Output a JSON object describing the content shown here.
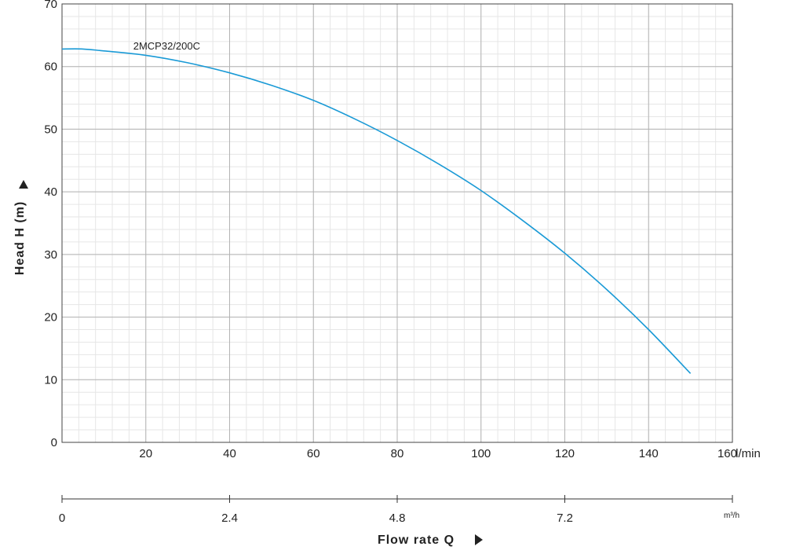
{
  "chart_data": {
    "type": "line",
    "title": "",
    "xlabel": "Flow rate Q",
    "ylabel": "Head H (m)",
    "x_unit": "l/min",
    "x2_unit": "m³/h",
    "xlim": [
      0,
      160
    ],
    "ylim": [
      0,
      70
    ],
    "x_ticks": [
      20,
      40,
      60,
      80,
      100,
      120,
      140,
      160
    ],
    "y_ticks": [
      0,
      10,
      20,
      30,
      40,
      50,
      60,
      70
    ],
    "x2_ticks": [
      {
        "value": 0,
        "label": "0"
      },
      {
        "value": 2.4,
        "label": "2.4"
      },
      {
        "value": 4.8,
        "label": "4.8"
      },
      {
        "value": 7.2,
        "label": "7.2"
      }
    ],
    "x2lim": [
      0,
      9.6
    ],
    "grid": true,
    "series": [
      {
        "name": "2MCP32/200C",
        "color": "#1a9ad6",
        "x": [
          0,
          5,
          10,
          20,
          30,
          40,
          50,
          60,
          70,
          80,
          90,
          100,
          110,
          120,
          130,
          140,
          150
        ],
        "y": [
          62.8,
          62.8,
          62.5,
          61.8,
          60.6,
          59.0,
          57.0,
          54.6,
          51.6,
          48.2,
          44.4,
          40.2,
          35.4,
          30.2,
          24.4,
          18.0,
          11.0
        ]
      }
    ]
  }
}
